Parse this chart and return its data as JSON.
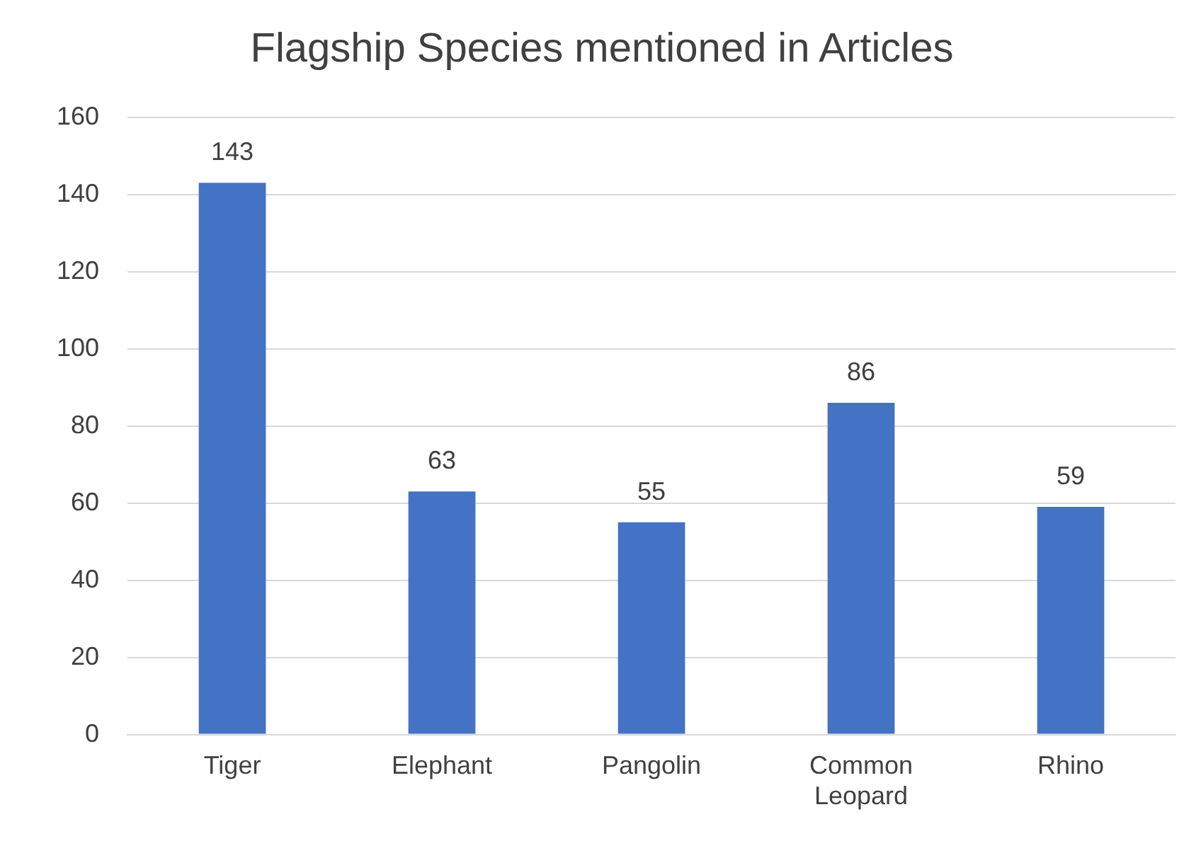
{
  "chart_data": {
    "type": "bar",
    "title": "Flagship Species mentioned in Articles",
    "categories": [
      "Tiger",
      "Elephant",
      "Pangolin",
      "Common Leopard",
      "Rhino"
    ],
    "values": [
      143,
      63,
      55,
      86,
      59
    ],
    "color": "#4472c4",
    "ylim": [
      0,
      160
    ],
    "yticks": [
      0,
      20,
      40,
      60,
      80,
      100,
      120,
      140,
      160
    ],
    "grid": "y",
    "data_labels": true
  }
}
